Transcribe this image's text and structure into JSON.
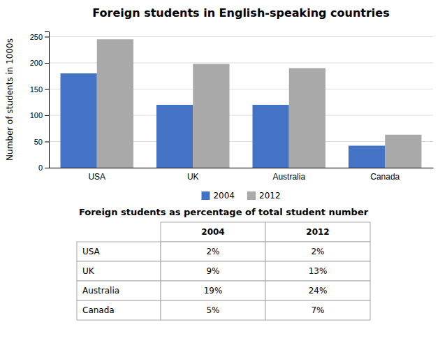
{
  "chart_data": [
    {
      "type": "bar",
      "title": "Foreign students in English-speaking countries",
      "y_label": "Number of students in 1000s",
      "categories": [
        "USA",
        "UK",
        "Australia",
        "Canada"
      ],
      "series": [
        {
          "name": "2004",
          "color": "#4472C4",
          "values": [
            180,
            120,
            120,
            42
          ]
        },
        {
          "name": "2012",
          "color": "#A9A9A9",
          "values": [
            245,
            198,
            190,
            63
          ]
        }
      ],
      "ylim": [
        0,
        260
      ],
      "yticks": [
        0,
        50,
        100,
        150,
        200,
        250
      ],
      "grid": true,
      "legend": "bottom"
    },
    {
      "type": "table",
      "title": "Foreign students as percentage of total student number",
      "columns": [
        "2004",
        "2012"
      ],
      "row_labels": [
        "USA",
        "UK",
        "Australia",
        "Canada"
      ],
      "cells": [
        [
          "2%",
          "2%"
        ],
        [
          "9%",
          "13%"
        ],
        [
          "19%",
          "24%"
        ],
        [
          "5%",
          "7%"
        ]
      ]
    }
  ]
}
